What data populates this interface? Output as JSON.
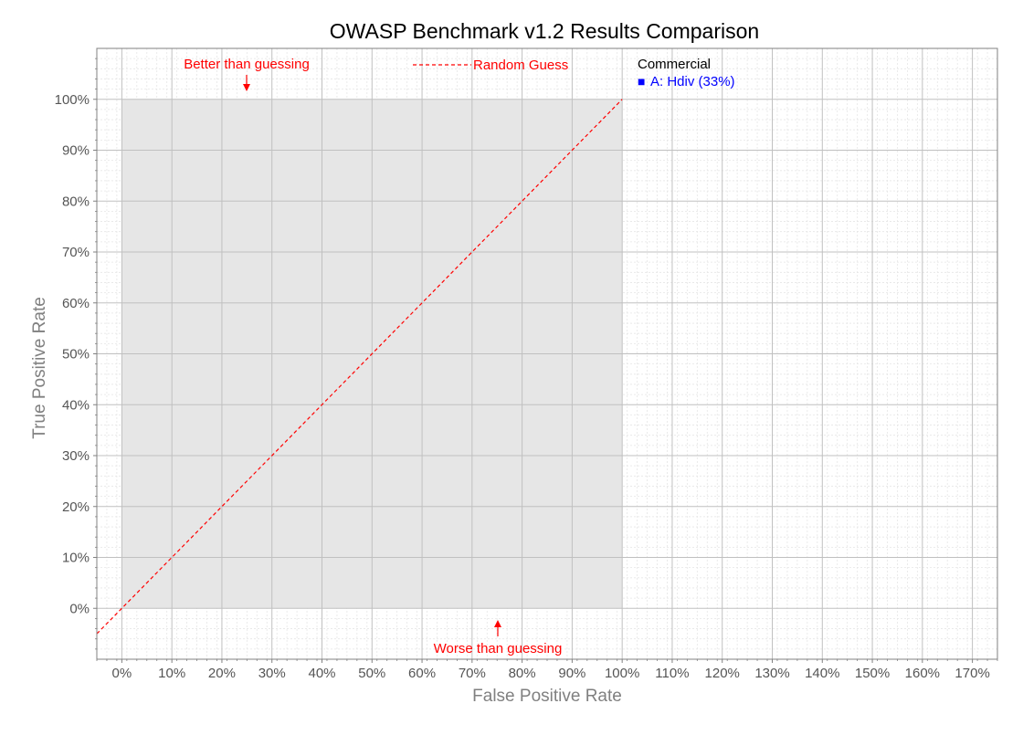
{
  "chart_data": {
    "type": "scatter",
    "title": "OWASP Benchmark v1.2 Results Comparison",
    "xlabel": "False Positive Rate",
    "ylabel": "True Positive Rate",
    "xlim": [
      -5,
      175
    ],
    "ylim": [
      -10,
      110
    ],
    "x_ticks": [
      0,
      10,
      20,
      30,
      40,
      50,
      60,
      70,
      80,
      90,
      100,
      110,
      120,
      130,
      140,
      150,
      160,
      170
    ],
    "x_tick_labels": [
      "0%",
      "10%",
      "20%",
      "30%",
      "40%",
      "50%",
      "60%",
      "70%",
      "80%",
      "90%",
      "100%",
      "110%",
      "120%",
      "130%",
      "140%",
      "150%",
      "160%",
      "170%"
    ],
    "y_ticks": [
      0,
      10,
      20,
      30,
      40,
      50,
      60,
      70,
      80,
      90,
      100
    ],
    "y_tick_labels": [
      "0%",
      "10%",
      "20%",
      "30%",
      "40%",
      "50%",
      "60%",
      "70%",
      "80%",
      "90%",
      "100%"
    ],
    "grid": true,
    "minor_grid": true,
    "shaded_region": {
      "x_range": [
        0,
        100
      ],
      "y_range": [
        0,
        100
      ],
      "color": "#e6e6e6"
    },
    "random_guess_line": {
      "name": "Random Guess",
      "from": [
        -5,
        -5
      ],
      "to": [
        100,
        100
      ],
      "color": "#ff0000",
      "style": "dashed"
    },
    "annotations": [
      {
        "text": "Better than guessing",
        "color": "#ff0000"
      },
      {
        "text": "Worse than guessing",
        "color": "#ff0000"
      }
    ],
    "legend": {
      "placement": "top-right",
      "group_title": "Commercial",
      "entries": [
        {
          "marker": "■",
          "label": "A: Hdiv (33%)",
          "color": "#0000ff"
        }
      ]
    },
    "series": []
  }
}
